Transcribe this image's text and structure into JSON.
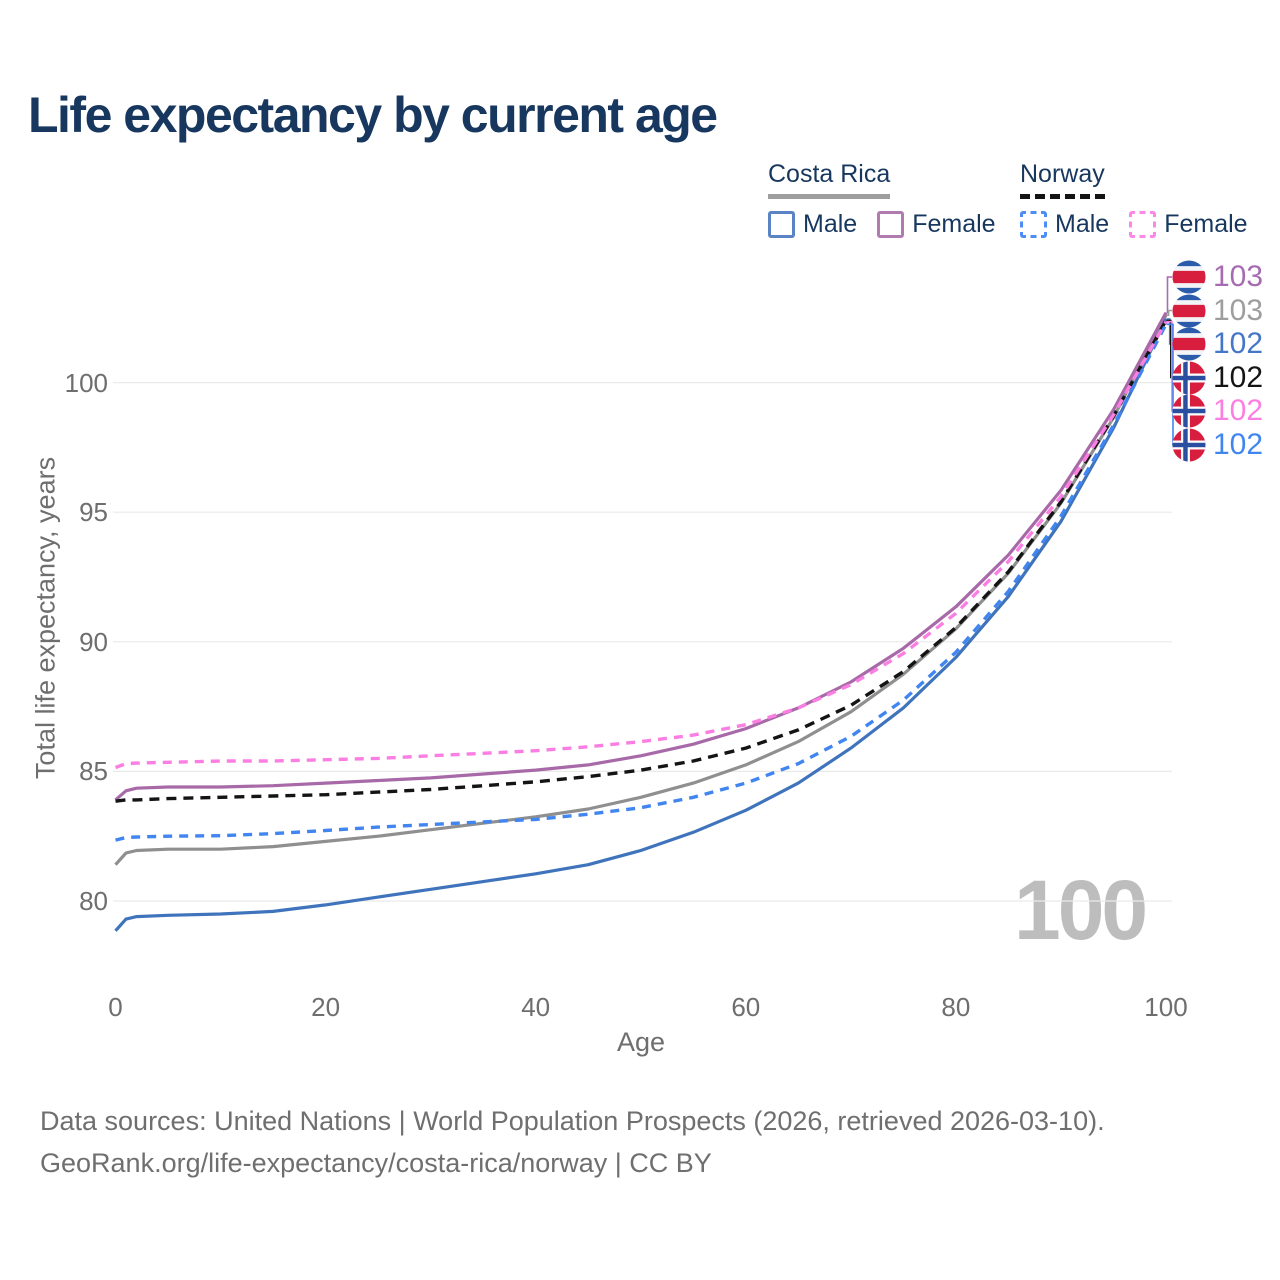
{
  "title": "Life expectancy by current age",
  "legend": {
    "groups": [
      {
        "label": "Costa Rica",
        "underline_style": "solid",
        "underline_color": "#9e9e9e",
        "items": [
          {
            "label": "Male",
            "color": "#5b84c4",
            "dash": false
          },
          {
            "label": "Female",
            "color": "#b07cb0",
            "dash": false
          }
        ]
      },
      {
        "label": "Norway",
        "underline_style": "dashed",
        "underline_color": "#141414",
        "items": [
          {
            "label": "Male",
            "color": "#4d8df5",
            "dash": true
          },
          {
            "label": "Female",
            "color": "#fb88e4",
            "dash": true
          }
        ]
      }
    ]
  },
  "chart_data": {
    "type": "line",
    "title": "Life expectancy by current age",
    "xlabel": "Age",
    "ylabel": "Total life expectancy, years",
    "xlim": [
      0,
      100
    ],
    "ylim": [
      78,
      104
    ],
    "xticks": [
      0,
      20,
      40,
      60,
      80,
      100
    ],
    "yticks": [
      80,
      85,
      90,
      95,
      100
    ],
    "grid": "horizontal-only",
    "gridline_color": "#eaeaea",
    "watermark": "100",
    "x": [
      0,
      1,
      2,
      5,
      10,
      15,
      20,
      25,
      30,
      35,
      40,
      45,
      50,
      55,
      60,
      65,
      70,
      75,
      80,
      85,
      90,
      95,
      100
    ],
    "series": [
      {
        "key": "crt",
        "name": "Costa Rica — Total",
        "country": "cr",
        "style": "solid",
        "color": "#8f8f8f",
        "values": [
          81.4,
          81.85,
          81.95,
          82.0,
          82.0,
          82.1,
          82.3,
          82.5,
          82.75,
          83.0,
          83.25,
          83.55,
          84.0,
          84.55,
          85.25,
          86.15,
          87.3,
          88.75,
          90.5,
          92.65,
          95.35,
          98.65,
          102.6
        ]
      },
      {
        "key": "crm",
        "name": "Costa Rica — Male",
        "country": "cr",
        "style": "solid",
        "color": "#3f74bd",
        "values": [
          78.85,
          79.3,
          79.4,
          79.45,
          79.5,
          79.6,
          79.85,
          80.15,
          80.45,
          80.75,
          81.05,
          81.4,
          81.95,
          82.65,
          83.5,
          84.55,
          85.9,
          87.45,
          89.4,
          91.75,
          94.65,
          98.25,
          102.45
        ]
      },
      {
        "key": "crf",
        "name": "Costa Rica — Female",
        "country": "cr",
        "style": "solid",
        "color": "#a869a8",
        "values": [
          83.9,
          84.25,
          84.35,
          84.4,
          84.4,
          84.45,
          84.55,
          84.65,
          84.75,
          84.9,
          85.05,
          85.25,
          85.6,
          86.05,
          86.65,
          87.45,
          88.45,
          89.75,
          91.35,
          93.35,
          95.85,
          98.95,
          102.7
        ]
      },
      {
        "key": "not",
        "name": "Norway — Total",
        "country": "no",
        "style": "dashed",
        "color": "#141414",
        "values": [
          83.85,
          83.9,
          83.9,
          83.95,
          84.0,
          84.05,
          84.1,
          84.2,
          84.3,
          84.45,
          84.6,
          84.8,
          85.05,
          85.4,
          85.9,
          86.6,
          87.55,
          88.85,
          90.55,
          92.7,
          95.4,
          98.7,
          102.4
        ]
      },
      {
        "key": "nom",
        "name": "Norway — Male",
        "country": "no",
        "style": "dashed",
        "color": "#4186f0",
        "values": [
          82.35,
          82.45,
          82.47,
          82.5,
          82.52,
          82.6,
          82.72,
          82.85,
          82.95,
          83.05,
          83.15,
          83.35,
          83.6,
          84.0,
          84.55,
          85.3,
          86.35,
          87.75,
          89.6,
          91.95,
          94.85,
          98.35,
          102.25
        ]
      },
      {
        "key": "nof",
        "name": "Norway — Female",
        "country": "no",
        "style": "dashed",
        "color": "#fb7ee2",
        "values": [
          85.15,
          85.3,
          85.32,
          85.35,
          85.4,
          85.4,
          85.45,
          85.5,
          85.6,
          85.7,
          85.8,
          85.95,
          86.15,
          86.4,
          86.8,
          87.45,
          88.35,
          89.55,
          91.1,
          93.1,
          95.6,
          98.75,
          102.35
        ]
      }
    ],
    "end_labels": [
      {
        "key": "crf",
        "value": "103",
        "color": "#a76bb2",
        "country": "cr"
      },
      {
        "key": "crt",
        "value": "103",
        "color": "#9e9e9e",
        "country": "cr"
      },
      {
        "key": "crm",
        "value": "102",
        "color": "#4577c6",
        "country": "cr"
      },
      {
        "key": "not",
        "value": "102",
        "color": "#141414",
        "country": "no"
      },
      {
        "key": "nof",
        "value": "102",
        "color": "#fb7ee2",
        "country": "no"
      },
      {
        "key": "nom",
        "value": "102",
        "color": "#4186f0",
        "country": "no"
      }
    ],
    "legend_position": "top-right"
  },
  "footer": {
    "line1": "Data sources: United Nations | World Population Prospects (2026, retrieved 2026-03-10).",
    "line2": "GeoRank.org/life-expectancy/costa-rica/norway | CC BY"
  }
}
